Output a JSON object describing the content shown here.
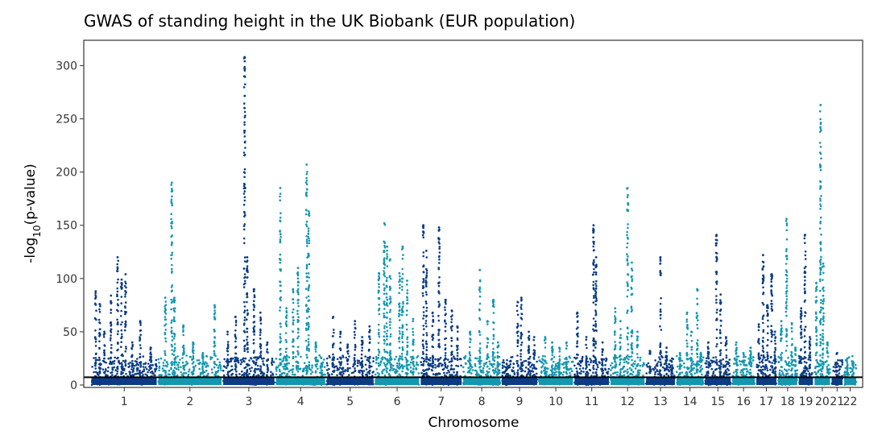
{
  "chart_data": {
    "type": "scatter",
    "title": "GWAS of standing height in the UK Biobank (EUR population)",
    "xlabel": "Chromosome",
    "ylabel_main": "-log",
    "ylabel_sub": "10",
    "ylabel_rest": "(p-value)",
    "ylim": [
      0,
      320
    ],
    "yticks": [
      0,
      50,
      100,
      150,
      200,
      250,
      300
    ],
    "significance_threshold": 7.3,
    "grid": false,
    "legend": "none",
    "series_colors": [
      "#0b3c85",
      "#1497b0"
    ],
    "chromosomes": [
      {
        "label": "1",
        "length": 249,
        "peaks": [
          [
            0.07,
            88
          ],
          [
            0.13,
            76
          ],
          [
            0.2,
            50
          ],
          [
            0.3,
            84
          ],
          [
            0.4,
            120
          ],
          [
            0.46,
            99
          ],
          [
            0.52,
            104
          ],
          [
            0.62,
            40
          ],
          [
            0.74,
            60
          ],
          [
            0.9,
            35
          ]
        ]
      },
      {
        "label": "2",
        "length": 243,
        "peaks": [
          [
            0.12,
            82
          ],
          [
            0.22,
            190
          ],
          [
            0.26,
            82
          ],
          [
            0.4,
            56
          ],
          [
            0.55,
            40
          ],
          [
            0.7,
            30
          ],
          [
            0.88,
            75
          ]
        ]
      },
      {
        "label": "3",
        "length": 198,
        "peaks": [
          [
            0.1,
            50
          ],
          [
            0.25,
            64
          ],
          [
            0.42,
            308
          ],
          [
            0.47,
            120
          ],
          [
            0.6,
            90
          ],
          [
            0.72,
            68
          ],
          [
            0.85,
            40
          ]
        ]
      },
      {
        "label": "4",
        "length": 190,
        "peaks": [
          [
            0.1,
            185
          ],
          [
            0.22,
            72
          ],
          [
            0.35,
            90
          ],
          [
            0.45,
            110
          ],
          [
            0.62,
            207
          ],
          [
            0.66,
            163
          ],
          [
            0.8,
            40
          ],
          [
            0.92,
            20
          ]
        ]
      },
      {
        "label": "5",
        "length": 181,
        "peaks": [
          [
            0.15,
            64
          ],
          [
            0.3,
            50
          ],
          [
            0.45,
            38
          ],
          [
            0.6,
            60
          ],
          [
            0.75,
            45
          ],
          [
            0.9,
            55
          ]
        ]
      },
      {
        "label": "6",
        "length": 171,
        "peaks": [
          [
            0.1,
            105
          ],
          [
            0.22,
            152
          ],
          [
            0.28,
            130
          ],
          [
            0.35,
            118
          ],
          [
            0.55,
            105
          ],
          [
            0.62,
            130
          ],
          [
            0.72,
            98
          ],
          [
            0.85,
            62
          ]
        ]
      },
      {
        "label": "7",
        "length": 159,
        "peaks": [
          [
            0.08,
            150
          ],
          [
            0.15,
            126
          ],
          [
            0.3,
            68
          ],
          [
            0.45,
            148
          ],
          [
            0.6,
            80
          ],
          [
            0.75,
            70
          ],
          [
            0.88,
            55
          ]
        ]
      },
      {
        "label": "8",
        "length": 145,
        "peaks": [
          [
            0.2,
            50
          ],
          [
            0.45,
            108
          ],
          [
            0.65,
            60
          ],
          [
            0.8,
            80
          ],
          [
            0.92,
            40
          ]
        ]
      },
      {
        "label": "9",
        "length": 138,
        "peaks": [
          [
            0.15,
            20
          ],
          [
            0.45,
            78
          ],
          [
            0.55,
            82
          ],
          [
            0.75,
            50
          ],
          [
            0.9,
            45
          ]
        ]
      },
      {
        "label": "10",
        "length": 134,
        "peaks": [
          [
            0.2,
            45
          ],
          [
            0.4,
            40
          ],
          [
            0.6,
            35
          ],
          [
            0.8,
            40
          ]
        ]
      },
      {
        "label": "11",
        "length": 135,
        "peaks": [
          [
            0.1,
            68
          ],
          [
            0.35,
            45
          ],
          [
            0.55,
            150
          ],
          [
            0.62,
            120
          ],
          [
            0.8,
            40
          ]
        ]
      },
      {
        "label": "12",
        "length": 133,
        "peaks": [
          [
            0.15,
            72
          ],
          [
            0.3,
            60
          ],
          [
            0.5,
            185
          ],
          [
            0.62,
            115
          ],
          [
            0.78,
            50
          ]
        ]
      },
      {
        "label": "13",
        "length": 114,
        "peaks": [
          [
            0.15,
            32
          ],
          [
            0.5,
            120
          ],
          [
            0.7,
            35
          ],
          [
            0.88,
            25
          ]
        ]
      },
      {
        "label": "14",
        "length": 107,
        "peaks": [
          [
            0.15,
            30
          ],
          [
            0.4,
            68
          ],
          [
            0.55,
            50
          ],
          [
            0.75,
            90
          ],
          [
            0.88,
            30
          ]
        ]
      },
      {
        "label": "15",
        "length": 102,
        "peaks": [
          [
            0.15,
            40
          ],
          [
            0.45,
            141
          ],
          [
            0.6,
            85
          ],
          [
            0.8,
            45
          ]
        ]
      },
      {
        "label": "16",
        "length": 90,
        "peaks": [
          [
            0.2,
            40
          ],
          [
            0.5,
            30
          ],
          [
            0.8,
            35
          ]
        ]
      },
      {
        "label": "17",
        "length": 81,
        "peaks": [
          [
            0.15,
            57
          ],
          [
            0.35,
            122
          ],
          [
            0.55,
            75
          ],
          [
            0.75,
            104
          ],
          [
            0.9,
            50
          ]
        ]
      },
      {
        "label": "18",
        "length": 78,
        "peaks": [
          [
            0.2,
            60
          ],
          [
            0.45,
            156
          ],
          [
            0.7,
            58
          ],
          [
            0.88,
            35
          ]
        ]
      },
      {
        "label": "19",
        "length": 59,
        "peaks": [
          [
            0.2,
            72
          ],
          [
            0.45,
            141
          ],
          [
            0.75,
            45
          ]
        ]
      },
      {
        "label": "20",
        "length": 64,
        "peaks": [
          [
            0.15,
            96
          ],
          [
            0.4,
            263
          ],
          [
            0.55,
            114
          ],
          [
            0.8,
            40
          ]
        ]
      },
      {
        "label": "21",
        "length": 47,
        "peaks": [
          [
            0.5,
            30
          ]
        ]
      },
      {
        "label": "22",
        "length": 51,
        "peaks": [
          [
            0.3,
            25
          ],
          [
            0.7,
            22
          ]
        ]
      }
    ]
  }
}
